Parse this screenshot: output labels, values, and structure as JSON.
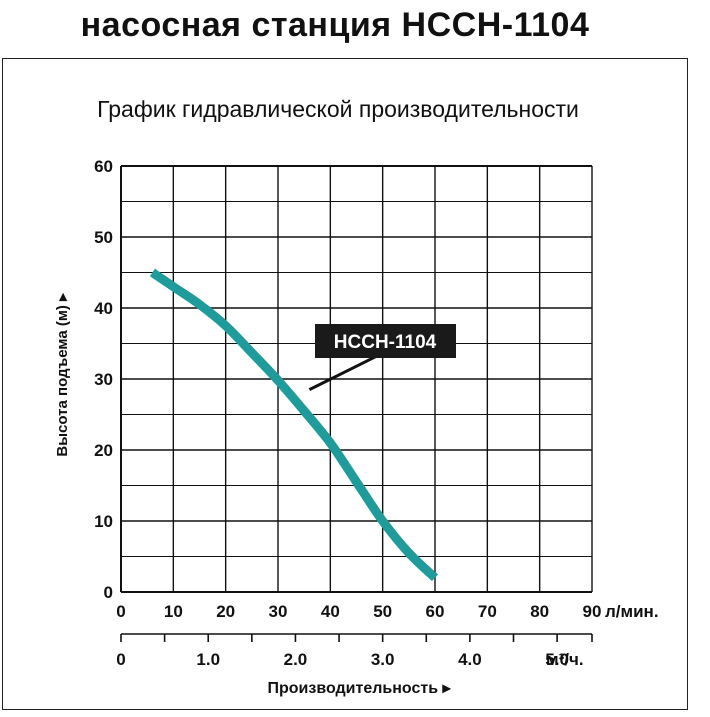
{
  "header": {
    "title": "насосная станция НССН-1104"
  },
  "chart_data": {
    "type": "line",
    "title": "График гидравлической производительности",
    "ylabel": "Высота подъема (м) ▸",
    "xlabel": "Производительность ▸",
    "x_unit": "л/мин.",
    "x2_unit": "м³/ч.",
    "xlim": [
      0,
      90
    ],
    "ylim": [
      0,
      60
    ],
    "x_ticks": [
      0,
      10,
      20,
      30,
      40,
      50,
      60,
      70,
      80,
      90
    ],
    "y_ticks": [
      0,
      10,
      20,
      30,
      40,
      50,
      60
    ],
    "x2_ticks": [
      "0",
      "1.0",
      "2.0",
      "3.0",
      "4.0",
      "5.0"
    ],
    "x2_tick_values": [
      0,
      1.0,
      2.0,
      3.0,
      4.0,
      5.0
    ],
    "grid": true,
    "series": [
      {
        "name": "НССН-1104",
        "color": "#1e9b9a",
        "x": [
          6,
          10,
          15,
          20,
          25,
          30,
          35,
          40,
          45,
          50,
          55,
          60
        ],
        "y": [
          45,
          43,
          40.5,
          37.5,
          33.7,
          29.8,
          25.5,
          21,
          15.5,
          10,
          5.5,
          2
        ]
      }
    ],
    "annotation": {
      "label": "НССН-1104",
      "x": 36,
      "y": 28.5
    }
  }
}
